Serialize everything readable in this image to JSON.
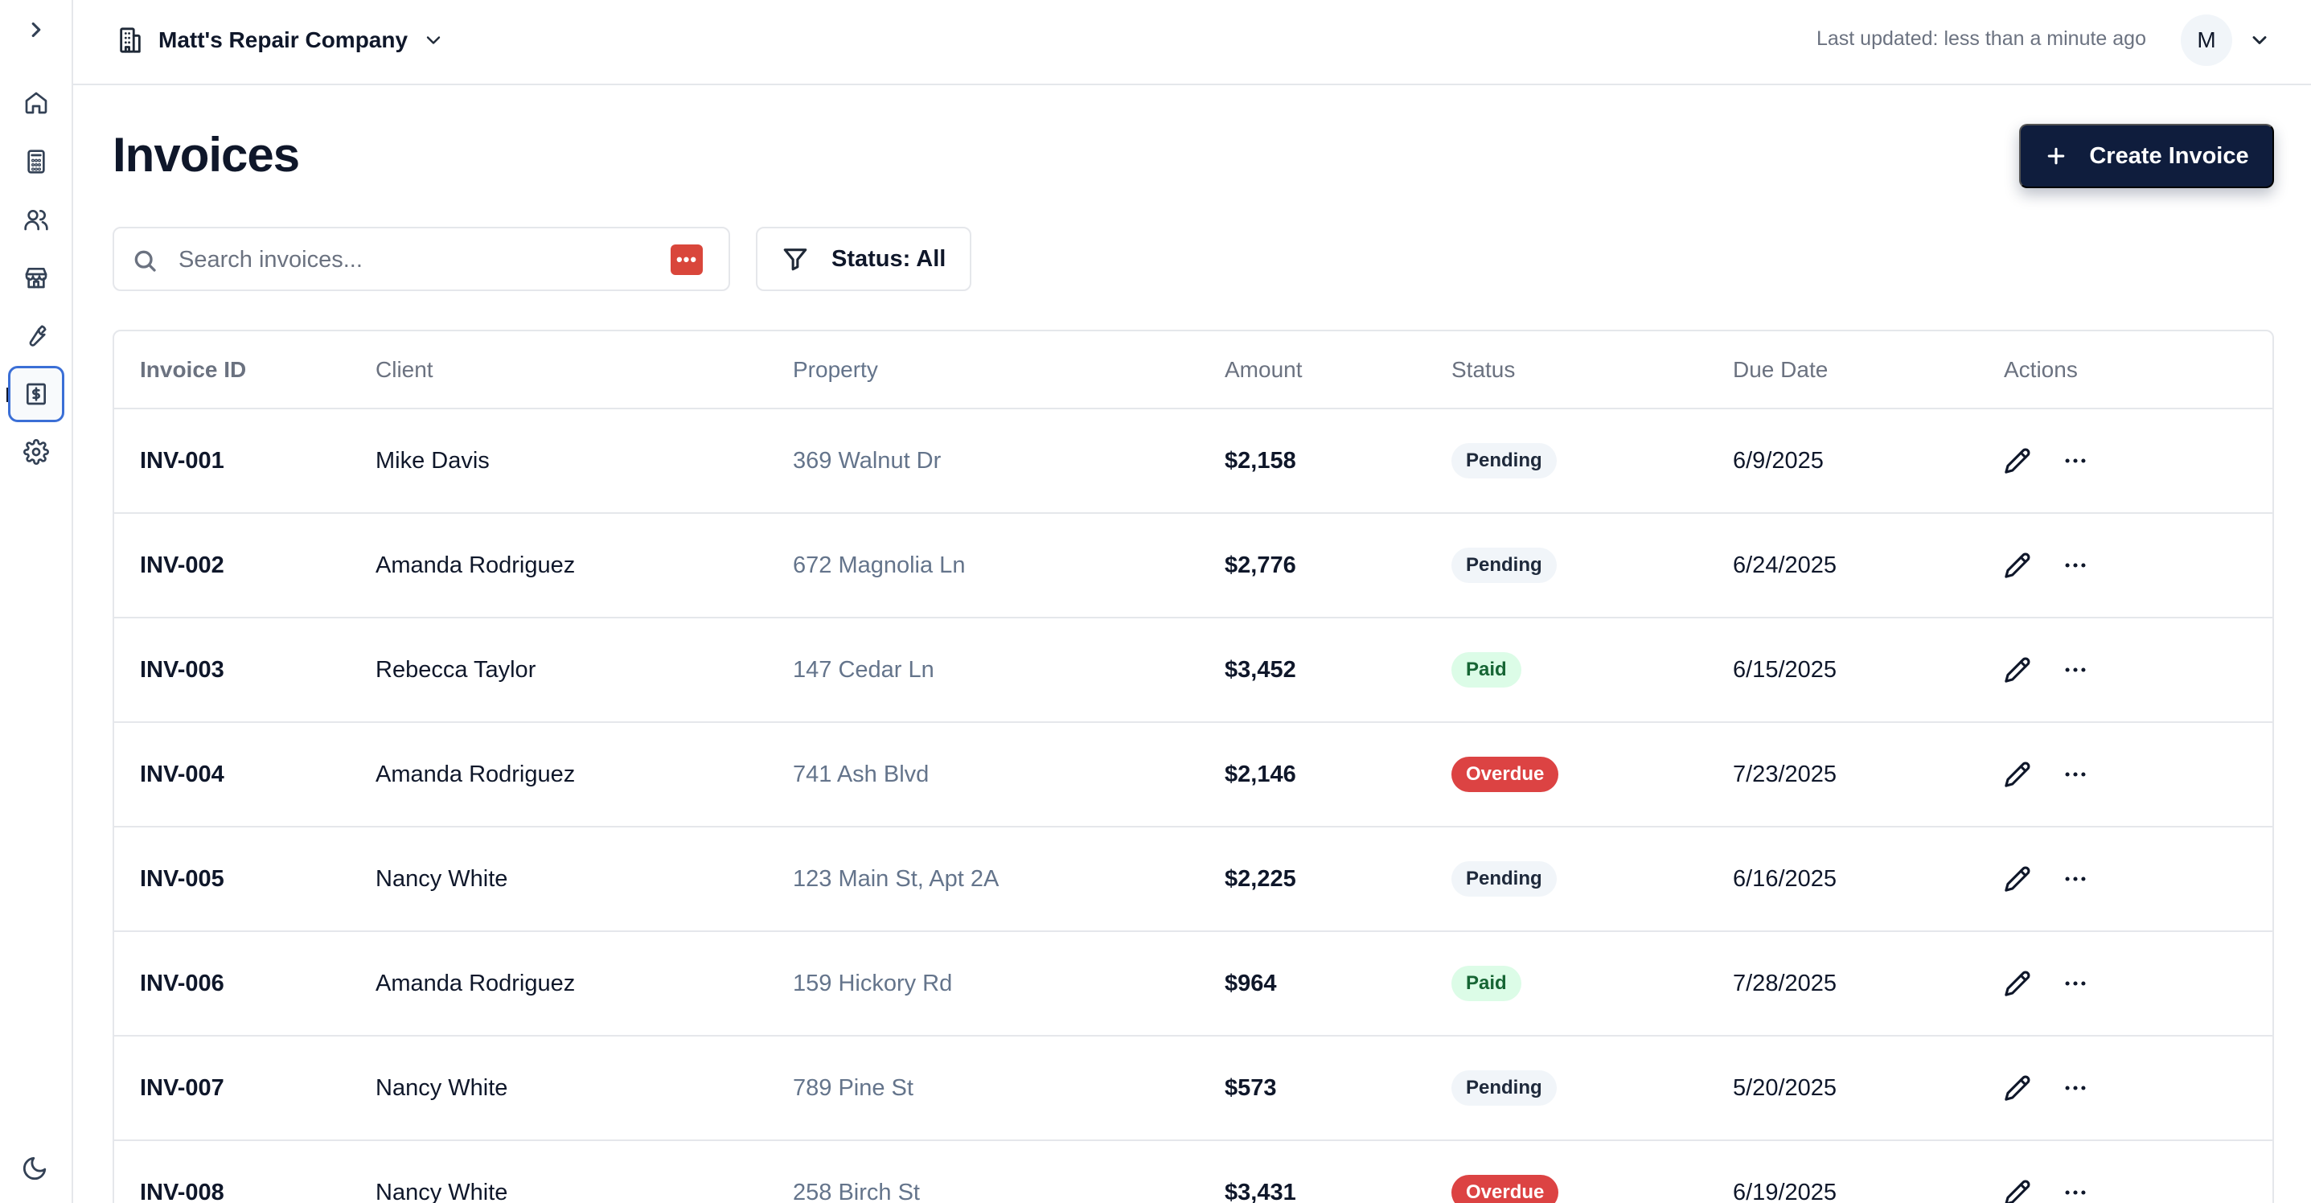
{
  "sidebar": {
    "items": [
      {
        "icon": "home-icon",
        "name": "sidebar-item-home"
      },
      {
        "icon": "calculator-icon",
        "name": "sidebar-item-estimates"
      },
      {
        "icon": "users-icon",
        "name": "sidebar-item-clients"
      },
      {
        "icon": "store-icon",
        "name": "sidebar-item-properties"
      },
      {
        "icon": "wrench-icon",
        "name": "sidebar-item-jobs"
      },
      {
        "icon": "receipt-dollar-icon",
        "name": "sidebar-item-invoices",
        "active": true
      },
      {
        "icon": "gear-icon",
        "name": "sidebar-item-settings"
      }
    ]
  },
  "header": {
    "company_name": "Matt's Repair Company",
    "last_updated": "Last updated: less than a minute ago",
    "avatar_initial": "M"
  },
  "main": {
    "title": "Invoices",
    "create_label": "Create Invoice",
    "search_placeholder": "Search invoices...",
    "status_filter_label": "Status: All"
  },
  "table": {
    "headers": {
      "id": "Invoice ID",
      "client": "Client",
      "property": "Property",
      "amount": "Amount",
      "status": "Status",
      "due": "Due Date",
      "actions": "Actions"
    },
    "rows": [
      {
        "id": "INV-001",
        "client": "Mike Davis",
        "property": "369 Walnut Dr",
        "amount": "$2,158",
        "status": "Pending",
        "due": "6/9/2025"
      },
      {
        "id": "INV-002",
        "client": "Amanda Rodriguez",
        "property": "672 Magnolia Ln",
        "amount": "$2,776",
        "status": "Pending",
        "due": "6/24/2025"
      },
      {
        "id": "INV-003",
        "client": "Rebecca Taylor",
        "property": "147 Cedar Ln",
        "amount": "$3,452",
        "status": "Paid",
        "due": "6/15/2025"
      },
      {
        "id": "INV-004",
        "client": "Amanda Rodriguez",
        "property": "741 Ash Blvd",
        "amount": "$2,146",
        "status": "Overdue",
        "due": "7/23/2025"
      },
      {
        "id": "INV-005",
        "client": "Nancy White",
        "property": "123 Main St, Apt 2A",
        "amount": "$2,225",
        "status": "Pending",
        "due": "6/16/2025"
      },
      {
        "id": "INV-006",
        "client": "Amanda Rodriguez",
        "property": "159 Hickory Rd",
        "amount": "$964",
        "status": "Paid",
        "due": "7/28/2025"
      },
      {
        "id": "INV-007",
        "client": "Nancy White",
        "property": "789 Pine St",
        "amount": "$573",
        "status": "Pending",
        "due": "5/20/2025"
      },
      {
        "id": "INV-008",
        "client": "Nancy White",
        "property": "258 Birch St",
        "amount": "$3,431",
        "status": "Overdue",
        "due": "6/19/2025"
      }
    ]
  },
  "colors": {
    "primary": "#0f1d3d",
    "active_outline": "#3b6fd6",
    "overdue": "#dc4343",
    "paid_bg": "#dcfce7",
    "pending_bg": "#f1f5f9"
  }
}
